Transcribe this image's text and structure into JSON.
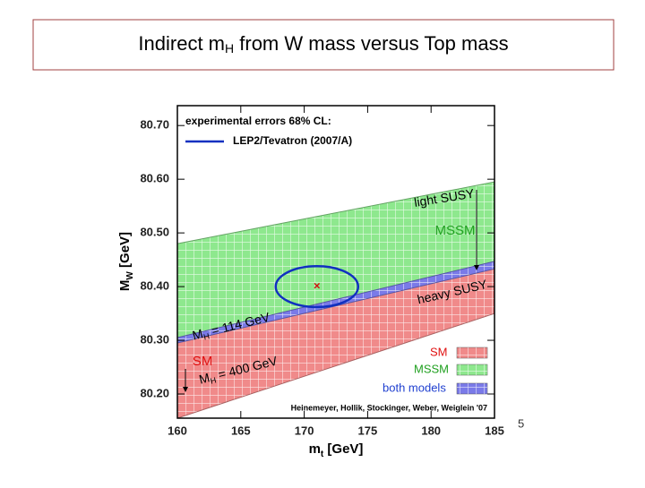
{
  "page_title": {
    "before": "Indirect m",
    "sub": "H",
    "after": " from W mass versus Top mass"
  },
  "page_number": "5",
  "chart_data": {
    "type": "band",
    "x_label": {
      "before": "m",
      "sub": "t",
      "after": " [GeV]"
    },
    "y_label": {
      "before": "M",
      "sub": "W",
      "after": " [GeV]"
    },
    "xlim": [
      160,
      185
    ],
    "ylim": [
      80.155,
      80.737
    ],
    "xticks": [
      160,
      165,
      170,
      175,
      180,
      185
    ],
    "yticks": [
      {
        "value": 80.2,
        "label": "80.20"
      },
      {
        "value": 80.3,
        "label": "80.30"
      },
      {
        "value": 80.4,
        "label": "80.40"
      },
      {
        "value": 80.5,
        "label": "80.50"
      },
      {
        "value": 80.6,
        "label": "80.60"
      },
      {
        "value": 80.7,
        "label": "80.70"
      }
    ],
    "series": [
      {
        "name": "MSSM",
        "color": "#8ee88e",
        "x": [
          160,
          185
        ],
        "lower": [
          80.3,
          80.44
        ],
        "upper": [
          80.48,
          80.595
        ]
      },
      {
        "name": "SM",
        "color": "#f08a8a",
        "x": [
          160,
          185
        ],
        "lower": [
          80.155,
          80.35
        ],
        "upper": [
          80.3,
          80.44
        ]
      },
      {
        "name": "both models",
        "color": "#7a7ae8",
        "x": [
          160,
          185
        ],
        "lower": [
          80.295,
          80.433
        ],
        "upper": [
          80.305,
          80.447
        ]
      }
    ],
    "legend_title": "experimental errors 68% CL:",
    "ellipse": {
      "name": "LEP2/Tevatron (2007/A)",
      "color": "#1030c0",
      "center": [
        171,
        80.4
      ],
      "radius": [
        3.25,
        0.038
      ]
    },
    "annotations": {
      "light_susy": "light SUSY",
      "heavy_susy": "heavy SUSY",
      "mssm": "MSSM",
      "sm": "SM",
      "mh114": {
        "before": "M",
        "sub": "H",
        "after": " = 114 GeV"
      },
      "mh400": {
        "before": "M",
        "sub": "H",
        "after": " = 400 GeV"
      },
      "credit": "Heinemeyer, Hollik, Stockinger, Weber, Weiglein '07"
    }
  }
}
